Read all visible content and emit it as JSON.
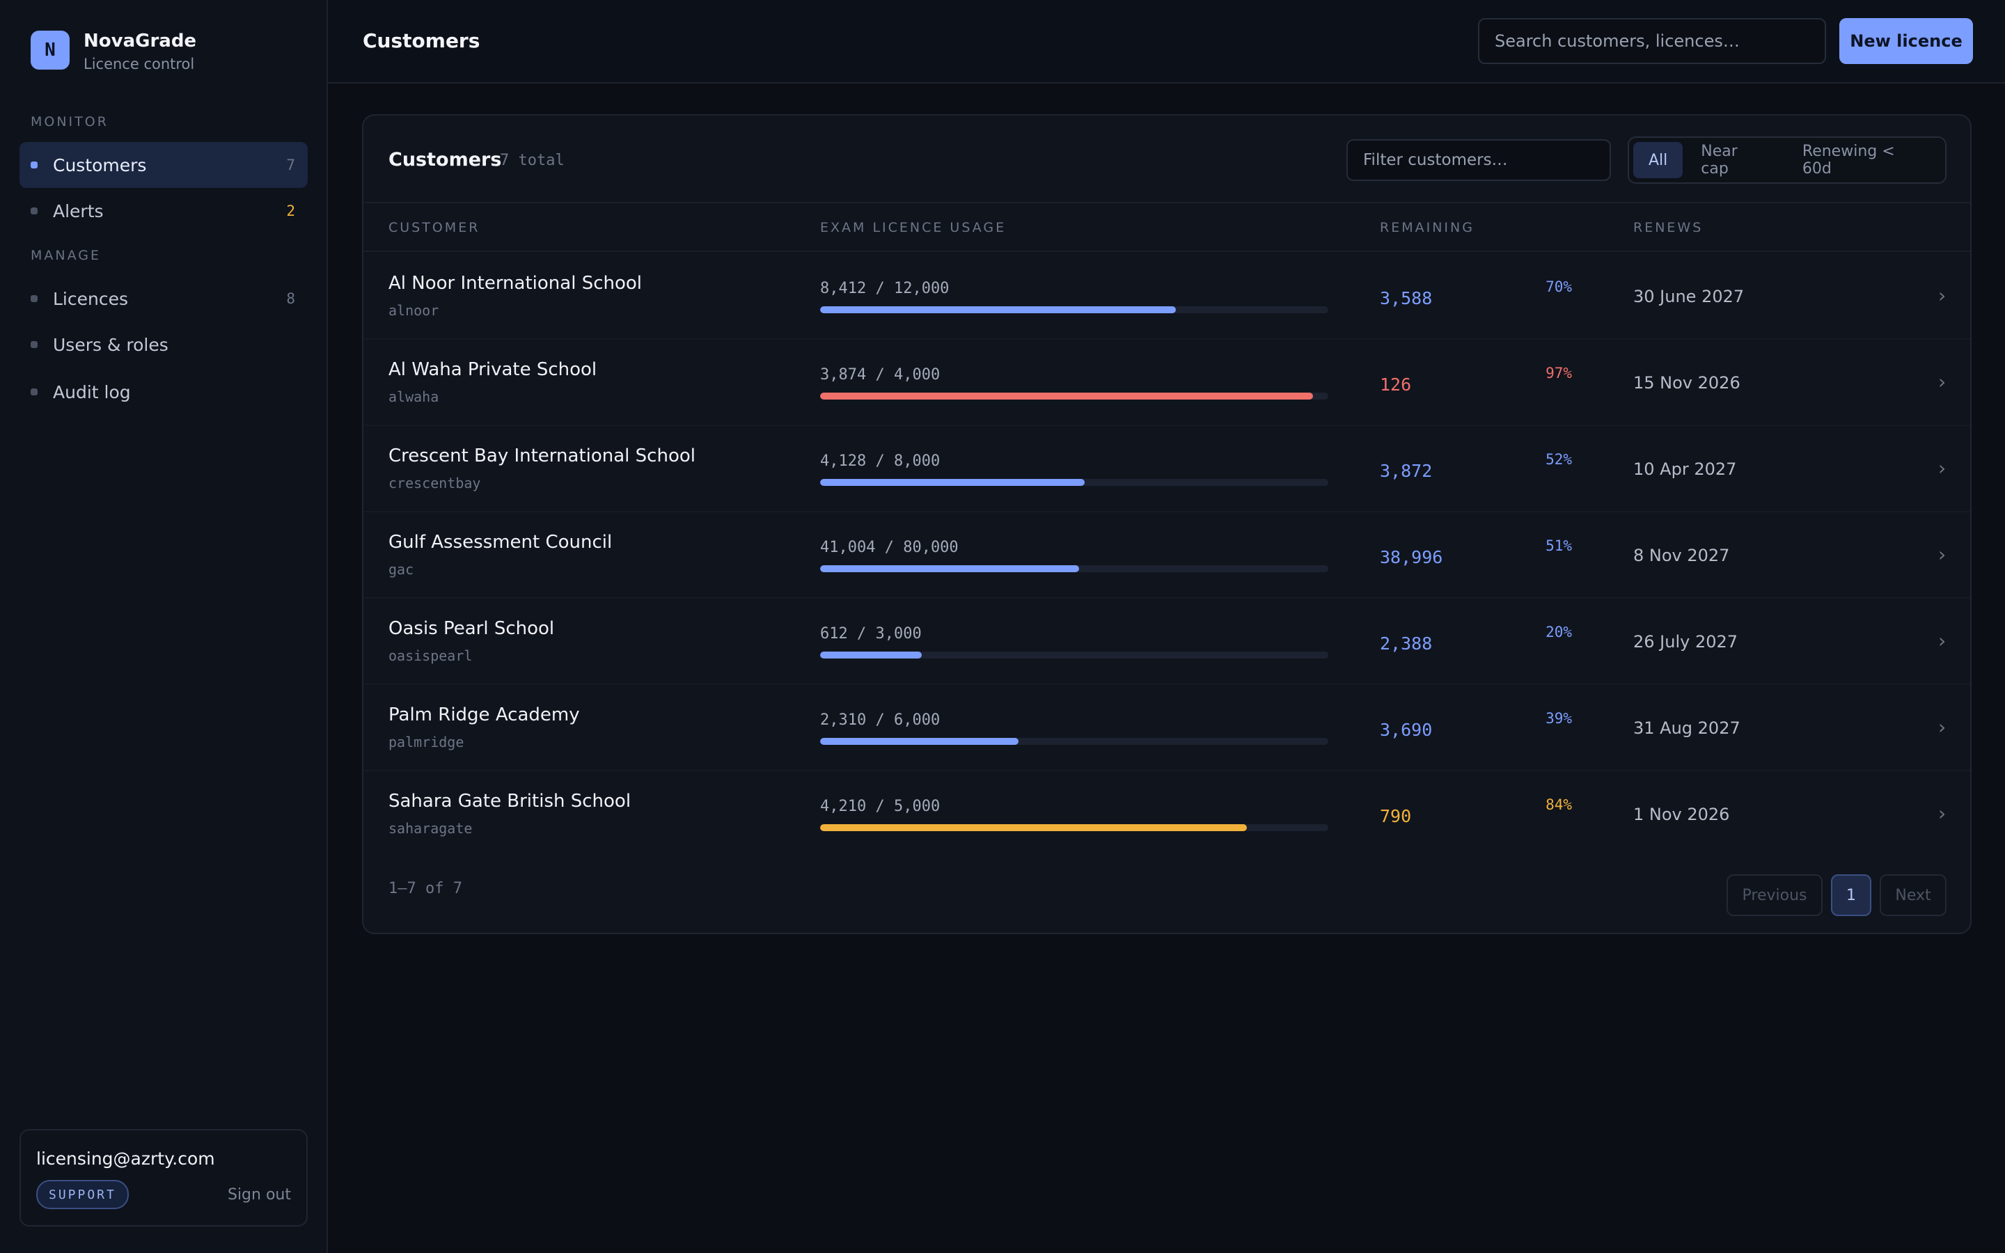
{
  "brand": {
    "logo_letter": "N",
    "name": "NovaGrade",
    "subtitle": "Licence control"
  },
  "sidebar": {
    "monitor_label": "MONITOR",
    "manage_label": "MANAGE",
    "items": [
      {
        "label": "Customers",
        "count": "7",
        "active": true
      },
      {
        "label": "Alerts",
        "count": "2",
        "count_color": "#f1b13b"
      },
      {
        "label": "Licences",
        "count": "8"
      },
      {
        "label": "Users & roles",
        "count": ""
      },
      {
        "label": "Audit log",
        "count": ""
      }
    ],
    "user": {
      "email": "licensing@azrty.com",
      "role": "SUPPORT",
      "signout": "Sign out"
    }
  },
  "header": {
    "title": "Customers",
    "search_placeholder": "Search customers, licences…",
    "new_button": "New licence"
  },
  "card": {
    "title": "Customers",
    "total": "7 total",
    "filter_placeholder": "Filter customers…",
    "segments": [
      {
        "label": "All",
        "active": true
      },
      {
        "label": "Near cap"
      },
      {
        "label": "Renewing < 60d"
      }
    ],
    "columns": [
      "CUSTOMER",
      "EXAM LICENCE USAGE",
      "REMAINING",
      "RENEWS"
    ],
    "rows": [
      {
        "name": "Al Noor International School",
        "slug": "alnoor",
        "usage": "8,412 / 12,000",
        "pct": "70%",
        "fill": 0.7,
        "color": "#7c9eff",
        "remaining": "3,588",
        "renews": "30 June 2027"
      },
      {
        "name": "Al Waha Private School",
        "slug": "alwaha",
        "usage": "3,874 / 4,000",
        "pct": "97%",
        "fill": 0.97,
        "color": "#f0706a",
        "remaining": "126",
        "renews": "15 Nov 2026"
      },
      {
        "name": "Crescent Bay International School",
        "slug": "crescentbay",
        "usage": "4,128 / 8,000",
        "pct": "52%",
        "fill": 0.52,
        "color": "#7c9eff",
        "remaining": "3,872",
        "renews": "10 Apr 2027"
      },
      {
        "name": "Gulf Assessment Council",
        "slug": "gac",
        "usage": "41,004 / 80,000",
        "pct": "51%",
        "fill": 0.51,
        "color": "#7c9eff",
        "remaining": "38,996",
        "renews": "8 Nov 2027"
      },
      {
        "name": "Oasis Pearl School",
        "slug": "oasispearl",
        "usage": "612 / 3,000",
        "pct": "20%",
        "fill": 0.2,
        "color": "#7c9eff",
        "remaining": "2,388",
        "renews": "26 July 2027"
      },
      {
        "name": "Palm Ridge Academy",
        "slug": "palmridge",
        "usage": "2,310 / 6,000",
        "pct": "39%",
        "fill": 0.39,
        "color": "#7c9eff",
        "remaining": "3,690",
        "renews": "31 Aug 2027"
      },
      {
        "name": "Sahara Gate British School",
        "slug": "saharagate",
        "usage": "4,210 / 5,000",
        "pct": "84%",
        "fill": 0.84,
        "color": "#f1b13b",
        "remaining": "790",
        "renews": "1 Nov 2026"
      }
    ],
    "pagination": {
      "info": "1–7 of 7",
      "previous": "Previous",
      "current": "1",
      "next": "Next"
    }
  }
}
